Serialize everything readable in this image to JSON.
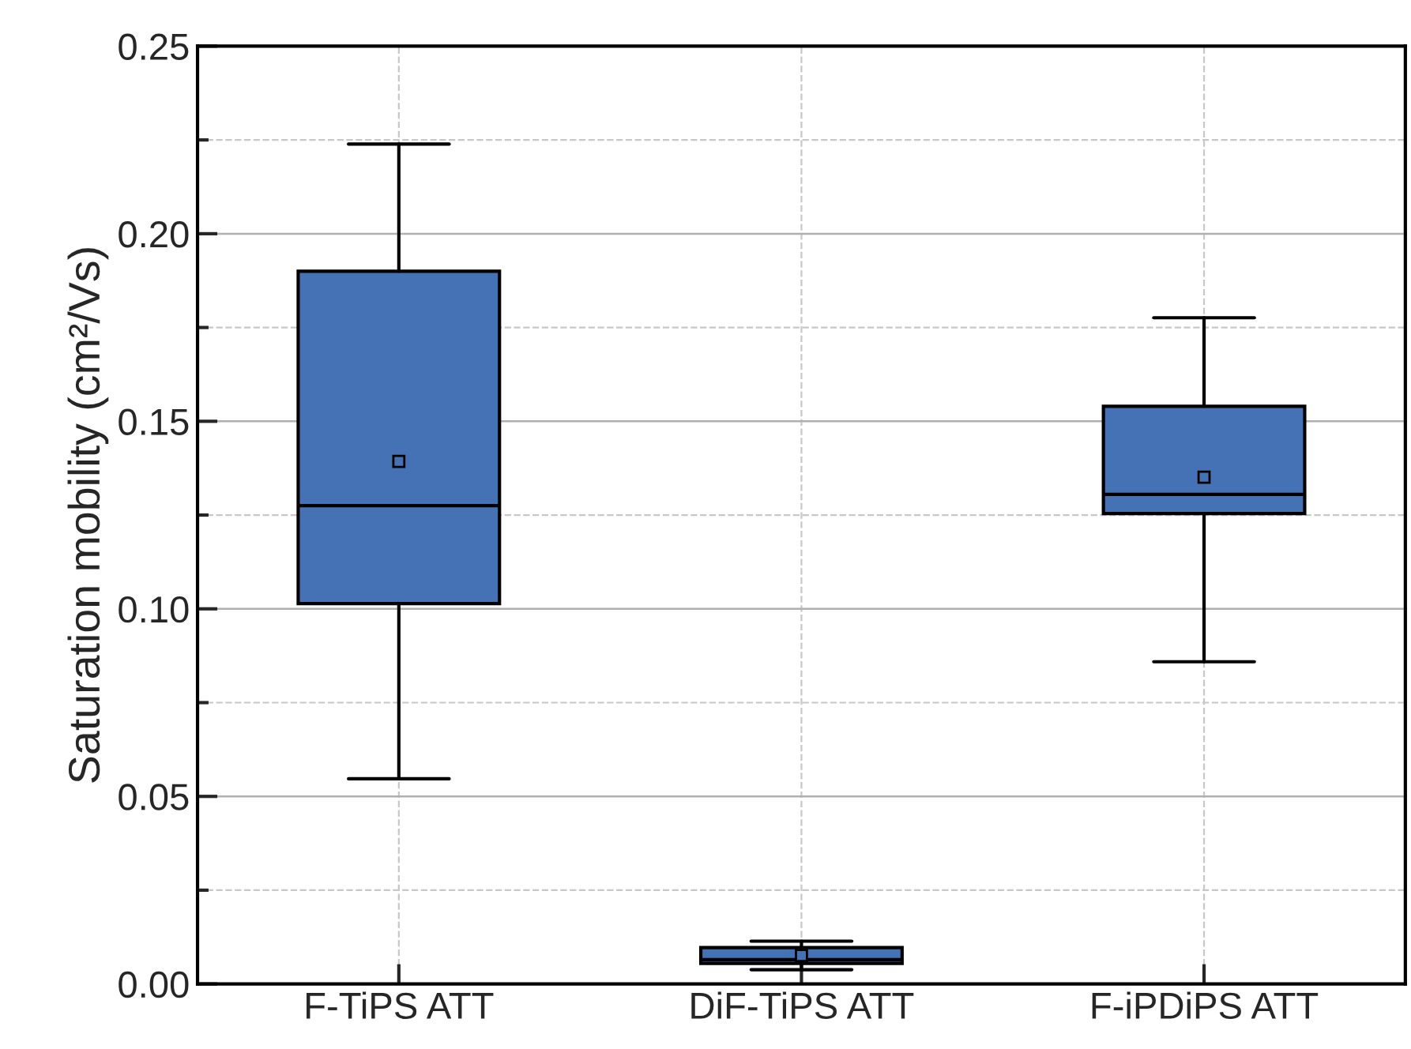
{
  "chart_data": {
    "type": "box",
    "ylabel": "Saturation mobility (cm²/Vs)",
    "categories": [
      "F-TiPS ATT",
      "DiF-TiPS ATT",
      "F-iPDiPS ATT"
    ],
    "color": "#4472b4",
    "boxes": [
      {
        "low": 0.0547,
        "q1": 0.1014,
        "median": 0.1275,
        "q3": 0.19,
        "high": 0.2239,
        "mean": 0.1393
      },
      {
        "low": 0.0038,
        "q1": 0.0055,
        "median": 0.0065,
        "q3": 0.0097,
        "high": 0.0114,
        "mean": 0.0076
      },
      {
        "low": 0.0859,
        "q1": 0.1254,
        "median": 0.1305,
        "q3": 0.154,
        "high": 0.1776,
        "mean": 0.1351
      }
    ],
    "ylim": [
      0,
      0.25
    ],
    "yticks": [
      {
        "value": 0,
        "label": "0.00"
      },
      {
        "value": 0.05,
        "label": "0.05"
      },
      {
        "value": 0.1,
        "label": "0.10"
      },
      {
        "value": 0.15,
        "label": "0.15"
      },
      {
        "value": 0.2,
        "label": "0.20"
      },
      {
        "value": 0.25,
        "label": "0.25"
      }
    ],
    "grid": true
  }
}
